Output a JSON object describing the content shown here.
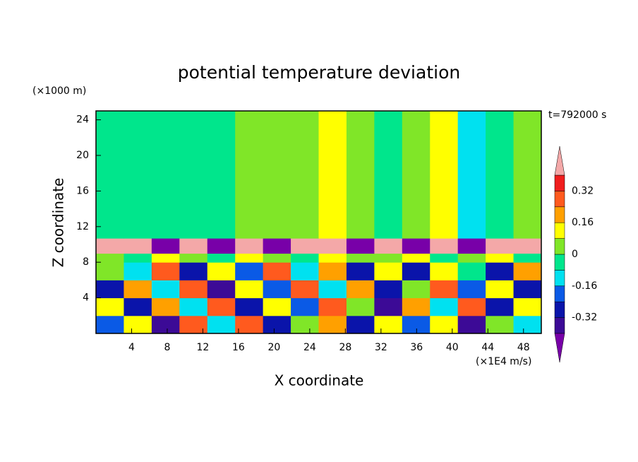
{
  "chart_data": {
    "type": "contour",
    "title": "potential temperature deviation",
    "y_unit": "(×1000 m)",
    "time_label": "t=792000 s",
    "xlabel": "X coordinate",
    "ylabel": "Z coordinate",
    "x_unit": "(×1E4 m/s)",
    "xlim": [
      0,
      50
    ],
    "ylim": [
      0,
      25
    ],
    "xticks": [
      4,
      8,
      12,
      16,
      20,
      24,
      28,
      32,
      36,
      40,
      44,
      48
    ],
    "yticks": [
      4,
      8,
      12,
      16,
      20,
      24
    ],
    "x_edges": [
      0,
      3.125,
      6.25,
      9.375,
      12.5,
      15.625,
      18.75,
      21.875,
      25,
      28.125,
      31.25,
      34.375,
      37.5,
      40.625,
      43.75,
      46.875,
      50
    ],
    "y_edges": [
      0,
      2,
      4,
      6,
      8,
      9,
      10.7,
      25
    ],
    "z": [
      [
        -0.2,
        0.1,
        -0.35,
        0.25,
        -0.1,
        0.3,
        -0.25,
        0.05,
        0.2,
        -0.3,
        0.15,
        -0.2,
        0.1,
        -0.35,
        0.05,
        -0.15
      ],
      [
        0.1,
        -0.25,
        0.2,
        -0.1,
        0.3,
        -0.3,
        0.15,
        -0.2,
        0.25,
        0.05,
        -0.35,
        0.2,
        -0.1,
        0.25,
        -0.3,
        0.1
      ],
      [
        -0.3,
        0.2,
        -0.1,
        0.25,
        -0.35,
        0.1,
        -0.2,
        0.3,
        -0.1,
        0.2,
        -0.25,
        0.05,
        0.3,
        -0.2,
        0.15,
        -0.3
      ],
      [
        0.05,
        -0.15,
        0.25,
        -0.3,
        0.1,
        -0.2,
        0.3,
        -0.1,
        0.2,
        -0.3,
        0.15,
        -0.25,
        0.1,
        -0.05,
        -0.3,
        0.2
      ],
      [
        0.05,
        -0.05,
        0.1,
        0.05,
        -0.05,
        0.1,
        0.05,
        -0.05,
        0.1,
        0.05,
        0,
        0.1,
        -0.05,
        0.05,
        0.1,
        -0.05
      ],
      [
        0.45,
        0.45,
        -0.45,
        0.45,
        -0.45,
        0.45,
        -0.45,
        0.45,
        0.45,
        -0.45,
        0.45,
        -0.45,
        0.45,
        -0.45,
        0.45,
        0.45
      ],
      [
        -0.04,
        -0.04,
        -0.04,
        -0.04,
        -0.04,
        0.04,
        0.04,
        0.04,
        0.12,
        0.04,
        -0.04,
        0.04,
        0.12,
        -0.1,
        -0.04,
        0.04
      ]
    ],
    "levels": [
      -0.4,
      -0.32,
      -0.24,
      -0.16,
      -0.08,
      0,
      0.08,
      0.16,
      0.24,
      0.32,
      0.4
    ],
    "colors": [
      "#7800a8",
      "#3c0a96",
      "#0a14aa",
      "#0a5ae6",
      "#00e1f0",
      "#00e68c",
      "#80e628",
      "#ffff00",
      "#ffa000",
      "#ff5a1e",
      "#f01e1e",
      "#f4a8a8"
    ],
    "colorbar_ticks": [
      0.32,
      0.16,
      0,
      -0.16,
      -0.32
    ]
  }
}
